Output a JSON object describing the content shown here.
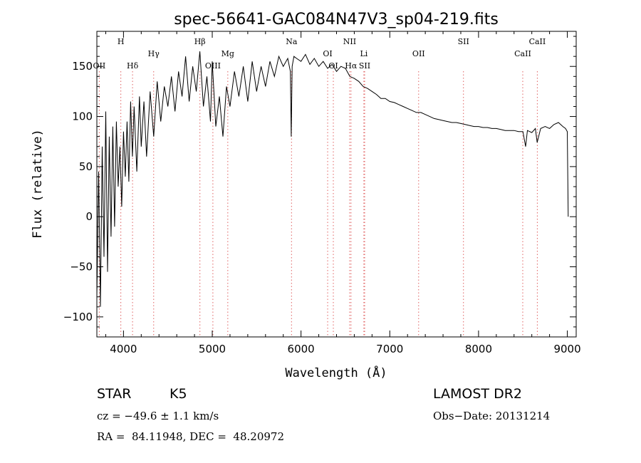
{
  "chart_data": {
    "type": "line",
    "title": "spec-56641-GAC084N47V3_sp04-219.fits",
    "xlabel": "Wavelength (Å)",
    "ylabel": "Flux (relative)",
    "xlim": [
      3700,
      9100
    ],
    "ylim": [
      -120,
      185
    ],
    "xticks": [
      4000,
      5000,
      6000,
      7000,
      8000,
      9000
    ],
    "yticks": [
      -100,
      -50,
      0,
      50,
      100,
      150
    ],
    "grid": false,
    "series": [
      {
        "color": "#000000",
        "x": [
          3700,
          3720,
          3740,
          3760,
          3780,
          3800,
          3820,
          3840,
          3860,
          3880,
          3900,
          3920,
          3940,
          3960,
          3980,
          4000,
          4020,
          4040,
          4060,
          4080,
          4100,
          4120,
          4150,
          4180,
          4200,
          4230,
          4260,
          4300,
          4340,
          4380,
          4420,
          4460,
          4500,
          4540,
          4580,
          4620,
          4660,
          4700,
          4740,
          4780,
          4820,
          4860,
          4900,
          4940,
          4980,
          5000,
          5040,
          5080,
          5120,
          5160,
          5200,
          5250,
          5300,
          5350,
          5400,
          5450,
          5500,
          5550,
          5600,
          5650,
          5700,
          5750,
          5800,
          5850,
          5880,
          5890,
          5900,
          5920,
          5950,
          6000,
          6050,
          6100,
          6150,
          6200,
          6250,
          6300,
          6350,
          6400,
          6450,
          6500,
          6550,
          6600,
          6650,
          6700,
          6750,
          6800,
          6850,
          6900,
          6950,
          7000,
          7050,
          7100,
          7150,
          7200,
          7250,
          7300,
          7350,
          7400,
          7450,
          7500,
          7550,
          7600,
          7650,
          7700,
          7750,
          7800,
          7850,
          7900,
          7950,
          8000,
          8050,
          8100,
          8150,
          8200,
          8250,
          8300,
          8350,
          8400,
          8450,
          8500,
          8530,
          8550,
          8600,
          8640,
          8660,
          8700,
          8750,
          8800,
          8850,
          8900,
          8950,
          8980,
          9000,
          9010
        ],
        "y": [
          -80,
          45,
          -90,
          70,
          -40,
          105,
          -55,
          80,
          -20,
          90,
          -10,
          95,
          30,
          70,
          10,
          85,
          40,
          95,
          35,
          115,
          60,
          110,
          45,
          120,
          70,
          115,
          60,
          125,
          80,
          135,
          95,
          130,
          110,
          140,
          105,
          145,
          120,
          160,
          115,
          150,
          125,
          165,
          110,
          140,
          95,
          155,
          90,
          120,
          80,
          130,
          110,
          145,
          120,
          150,
          115,
          155,
          125,
          150,
          130,
          155,
          140,
          160,
          150,
          158,
          145,
          80,
          150,
          160,
          158,
          155,
          162,
          152,
          158,
          150,
          155,
          148,
          152,
          145,
          150,
          148,
          140,
          138,
          135,
          130,
          128,
          125,
          122,
          118,
          118,
          115,
          114,
          112,
          110,
          108,
          106,
          104,
          104,
          102,
          100,
          98,
          97,
          96,
          95,
          94,
          94,
          93,
          92,
          91,
          90,
          90,
          89,
          89,
          88,
          88,
          87,
          86,
          86,
          86,
          85,
          85,
          70,
          86,
          84,
          88,
          74,
          88,
          90,
          88,
          92,
          94,
          90,
          88,
          85,
          0
        ]
      }
    ],
    "lines": [
      {
        "label": "H",
        "x": 3970,
        "row": "top"
      },
      {
        "label": "OII",
        "x": 3727,
        "row": "low"
      },
      {
        "label": "Hδ",
        "x": 4102,
        "row": "low"
      },
      {
        "label": "Hγ",
        "x": 4340,
        "row": "mid"
      },
      {
        "label": "Hβ",
        "x": 4861,
        "row": "top"
      },
      {
        "label": "OIII",
        "x": 5007,
        "row": "low"
      },
      {
        "label": "Mg",
        "x": 5175,
        "row": "mid"
      },
      {
        "label": "Na",
        "x": 5893,
        "row": "top"
      },
      {
        "label": "OI",
        "x": 6300,
        "row": "mid"
      },
      {
        "label": "OI",
        "x": 6364,
        "row": "low"
      },
      {
        "label": "NII",
        "x": 6548,
        "row": "top"
      },
      {
        "label": "Hα",
        "x": 6563,
        "row": "low"
      },
      {
        "label": "Li",
        "x": 6708,
        "row": "mid"
      },
      {
        "label": "SII",
        "x": 6717,
        "row": "low"
      },
      {
        "label": "OII",
        "x": 7325,
        "row": "mid"
      },
      {
        "label": "SII",
        "x": 7830,
        "row": "top"
      },
      {
        "label": "CaII",
        "x": 8498,
        "row": "mid"
      },
      {
        "label": "CaII",
        "x": 8662,
        "row": "top"
      }
    ]
  },
  "info": {
    "class_label": "STAR",
    "subclass": "K5",
    "survey": "LAMOST DR2",
    "redshift": "cz = −49.6 ± 1.1 km/s",
    "obs_date": "Obs−Date: 20131214",
    "coords": "RA =  84.11948, DEC =  48.20972"
  }
}
